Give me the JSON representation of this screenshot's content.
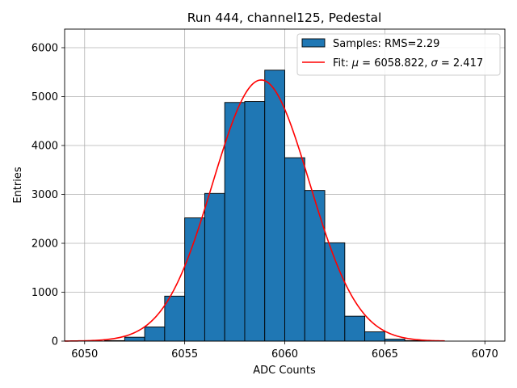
{
  "chart_data": {
    "type": "bar",
    "title": "Run 444, channel125, Pedestal",
    "xlabel": "ADC Counts",
    "ylabel": "Entries",
    "xlim": [
      6049,
      6071
    ],
    "ylim": [
      0,
      6380
    ],
    "xticks": [
      6050,
      6055,
      6060,
      6065,
      6070
    ],
    "yticks": [
      0,
      1000,
      2000,
      3000,
      4000,
      5000,
      6000
    ],
    "grid": true,
    "legend_position": "top-right",
    "histogram": {
      "name": "Samples: RMS=2.29",
      "color": "#1f77b4",
      "bin_width": 1,
      "bins": [
        {
          "x": 6051,
          "value": 10
        },
        {
          "x": 6052,
          "value": 80
        },
        {
          "x": 6053,
          "value": 290
        },
        {
          "x": 6054,
          "value": 920
        },
        {
          "x": 6055,
          "value": 2520
        },
        {
          "x": 6056,
          "value": 3020
        },
        {
          "x": 6057,
          "value": 4880
        },
        {
          "x": 6058,
          "value": 4900
        },
        {
          "x": 6059,
          "value": 5540
        },
        {
          "x": 6060,
          "value": 3750
        },
        {
          "x": 6061,
          "value": 3080
        },
        {
          "x": 6062,
          "value": 2010
        },
        {
          "x": 6063,
          "value": 510
        },
        {
          "x": 6064,
          "value": 190
        },
        {
          "x": 6065,
          "value": 40
        },
        {
          "x": 6066,
          "value": 10
        }
      ]
    },
    "fit": {
      "name_prefix": "Fit: ",
      "mu_symbol": "μ",
      "sigma_symbol": "σ",
      "mu_text": " = 6058.822, ",
      "sigma_text": " = 2.417",
      "color": "#ff0000",
      "mu": 6058.822,
      "sigma": 2.417,
      "amplitude": 5340,
      "x_range": [
        6049,
        6068
      ]
    }
  }
}
